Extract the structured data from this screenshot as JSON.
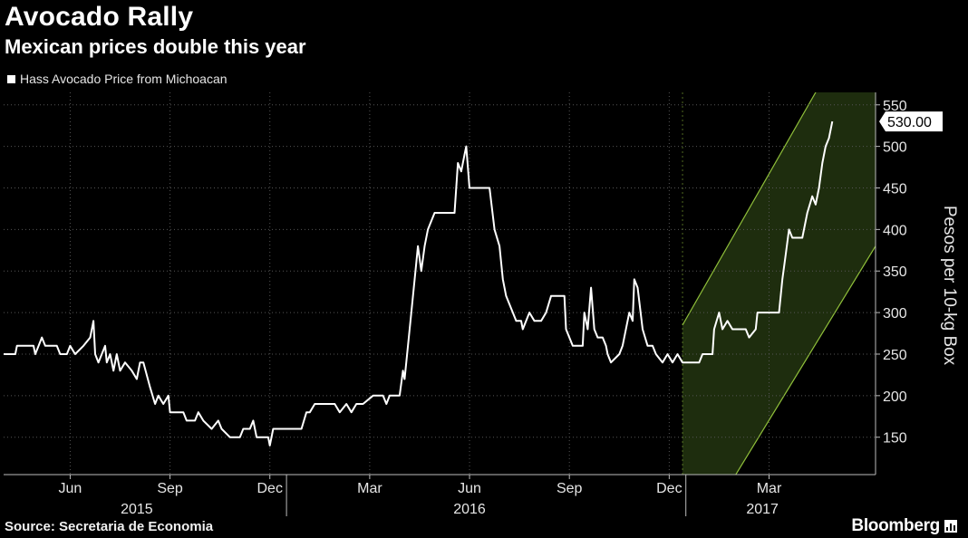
{
  "chart_data": {
    "type": "line",
    "title": "Avocado Rally",
    "subtitle": "Mexican prices double this year",
    "ylabel": "Pesos per 10-kg Box",
    "source": "Source: Secretaria de Economia",
    "brand": "Bloomberg",
    "ylim": [
      105,
      565
    ],
    "y_ticks": [
      150,
      200,
      250,
      300,
      350,
      400,
      450,
      500,
      550
    ],
    "x_range": [
      0,
      26.2
    ],
    "month_ticks": [
      {
        "label": "Jun",
        "x": 2
      },
      {
        "label": "Sep",
        "x": 5
      },
      {
        "label": "Dec",
        "x": 8
      },
      {
        "label": "Mar",
        "x": 11
      },
      {
        "label": "Jun",
        "x": 14
      },
      {
        "label": "Sep",
        "x": 17
      },
      {
        "label": "Dec",
        "x": 20
      },
      {
        "label": "Mar",
        "x": 23
      }
    ],
    "year_labels": [
      {
        "label": "2015",
        "x": 4.0
      },
      {
        "label": "2016",
        "x": 14.0
      },
      {
        "label": "2017",
        "x": 22.8
      }
    ],
    "year_dividers": [
      8.5,
      20.5
    ],
    "last_value_label": "530.00",
    "channel": {
      "x_start": 20.4,
      "x_end": 26.2,
      "upper": [
        [
          20.4,
          285
        ],
        [
          24.4,
          565
        ]
      ],
      "lower": [
        [
          22.0,
          105
        ],
        [
          26.2,
          380
        ]
      ]
    },
    "colors": {
      "line": "#ffffff",
      "channel_fill": "#1e2d0e",
      "channel_edge": "#8fbf3a",
      "grid": "#555555",
      "axis": "#bbbbbb"
    },
    "series": [
      {
        "name": "Hass Avocado Price from Michoacan",
        "points": [
          [
            0.0,
            250
          ],
          [
            0.35,
            250
          ],
          [
            0.4,
            260
          ],
          [
            0.9,
            260
          ],
          [
            0.95,
            250
          ],
          [
            1.05,
            260
          ],
          [
            1.15,
            270
          ],
          [
            1.25,
            260
          ],
          [
            1.6,
            260
          ],
          [
            1.7,
            250
          ],
          [
            1.9,
            250
          ],
          [
            2.0,
            260
          ],
          [
            2.15,
            250
          ],
          [
            2.4,
            260
          ],
          [
            2.6,
            270
          ],
          [
            2.7,
            290
          ],
          [
            2.75,
            250
          ],
          [
            2.85,
            240
          ],
          [
            2.95,
            250
          ],
          [
            3.05,
            260
          ],
          [
            3.1,
            240
          ],
          [
            3.2,
            250
          ],
          [
            3.3,
            230
          ],
          [
            3.4,
            250
          ],
          [
            3.5,
            230
          ],
          [
            3.65,
            240
          ],
          [
            3.85,
            230
          ],
          [
            4.0,
            220
          ],
          [
            4.1,
            240
          ],
          [
            4.2,
            240
          ],
          [
            4.4,
            210
          ],
          [
            4.55,
            190
          ],
          [
            4.65,
            200
          ],
          [
            4.8,
            190
          ],
          [
            4.95,
            200
          ],
          [
            5.0,
            180
          ],
          [
            5.4,
            180
          ],
          [
            5.5,
            170
          ],
          [
            5.75,
            170
          ],
          [
            5.85,
            180
          ],
          [
            6.0,
            170
          ],
          [
            6.25,
            160
          ],
          [
            6.45,
            170
          ],
          [
            6.55,
            160
          ],
          [
            6.8,
            150
          ],
          [
            7.1,
            150
          ],
          [
            7.2,
            160
          ],
          [
            7.4,
            160
          ],
          [
            7.5,
            170
          ],
          [
            7.6,
            150
          ],
          [
            7.95,
            150
          ],
          [
            8.0,
            140
          ],
          [
            8.1,
            160
          ],
          [
            8.6,
            160
          ],
          [
            8.95,
            160
          ],
          [
            9.1,
            180
          ],
          [
            9.2,
            180
          ],
          [
            9.35,
            190
          ],
          [
            9.7,
            190
          ],
          [
            9.95,
            190
          ],
          [
            10.1,
            180
          ],
          [
            10.3,
            190
          ],
          [
            10.45,
            180
          ],
          [
            10.6,
            190
          ],
          [
            10.8,
            190
          ],
          [
            11.1,
            200
          ],
          [
            11.4,
            200
          ],
          [
            11.5,
            190
          ],
          [
            11.6,
            200
          ],
          [
            11.9,
            200
          ],
          [
            12.0,
            230
          ],
          [
            12.05,
            220
          ],
          [
            12.15,
            260
          ],
          [
            12.25,
            300
          ],
          [
            12.4,
            360
          ],
          [
            12.45,
            380
          ],
          [
            12.55,
            350
          ],
          [
            12.65,
            380
          ],
          [
            12.75,
            400
          ],
          [
            12.95,
            420
          ],
          [
            13.55,
            420
          ],
          [
            13.65,
            480
          ],
          [
            13.75,
            470
          ],
          [
            13.85,
            490
          ],
          [
            13.9,
            500
          ],
          [
            14.0,
            450
          ],
          [
            14.6,
            450
          ],
          [
            14.75,
            400
          ],
          [
            14.9,
            380
          ],
          [
            15.0,
            340
          ],
          [
            15.1,
            320
          ],
          [
            15.4,
            290
          ],
          [
            15.55,
            290
          ],
          [
            15.6,
            280
          ],
          [
            15.8,
            300
          ],
          [
            15.95,
            290
          ],
          [
            16.15,
            290
          ],
          [
            16.3,
            300
          ],
          [
            16.45,
            320
          ],
          [
            16.85,
            320
          ],
          [
            16.9,
            280
          ],
          [
            17.0,
            270
          ],
          [
            17.1,
            260
          ],
          [
            17.4,
            260
          ],
          [
            17.45,
            300
          ],
          [
            17.55,
            280
          ],
          [
            17.65,
            330
          ],
          [
            17.75,
            280
          ],
          [
            17.85,
            270
          ],
          [
            18.0,
            270
          ],
          [
            18.1,
            260
          ],
          [
            18.15,
            250
          ],
          [
            18.25,
            240
          ],
          [
            18.5,
            250
          ],
          [
            18.6,
            260
          ],
          [
            18.8,
            300
          ],
          [
            18.9,
            290
          ],
          [
            18.95,
            340
          ],
          [
            19.05,
            330
          ],
          [
            19.2,
            280
          ],
          [
            19.35,
            260
          ],
          [
            19.5,
            260
          ],
          [
            19.6,
            250
          ],
          [
            19.8,
            240
          ],
          [
            19.95,
            250
          ],
          [
            20.1,
            240
          ],
          [
            20.25,
            250
          ],
          [
            20.4,
            240
          ],
          [
            20.9,
            240
          ],
          [
            21.0,
            250
          ],
          [
            21.3,
            250
          ],
          [
            21.35,
            280
          ],
          [
            21.5,
            300
          ],
          [
            21.6,
            280
          ],
          [
            21.75,
            290
          ],
          [
            21.9,
            280
          ],
          [
            22.3,
            280
          ],
          [
            22.4,
            270
          ],
          [
            22.6,
            280
          ],
          [
            22.65,
            300
          ],
          [
            23.0,
            300
          ],
          [
            23.3,
            300
          ],
          [
            23.4,
            340
          ],
          [
            23.5,
            370
          ],
          [
            23.6,
            400
          ],
          [
            23.7,
            390
          ],
          [
            24.0,
            390
          ],
          [
            24.15,
            420
          ],
          [
            24.3,
            440
          ],
          [
            24.4,
            430
          ],
          [
            24.5,
            450
          ],
          [
            24.6,
            480
          ],
          [
            24.7,
            500
          ],
          [
            24.8,
            510
          ],
          [
            24.9,
            530
          ]
        ]
      }
    ]
  }
}
